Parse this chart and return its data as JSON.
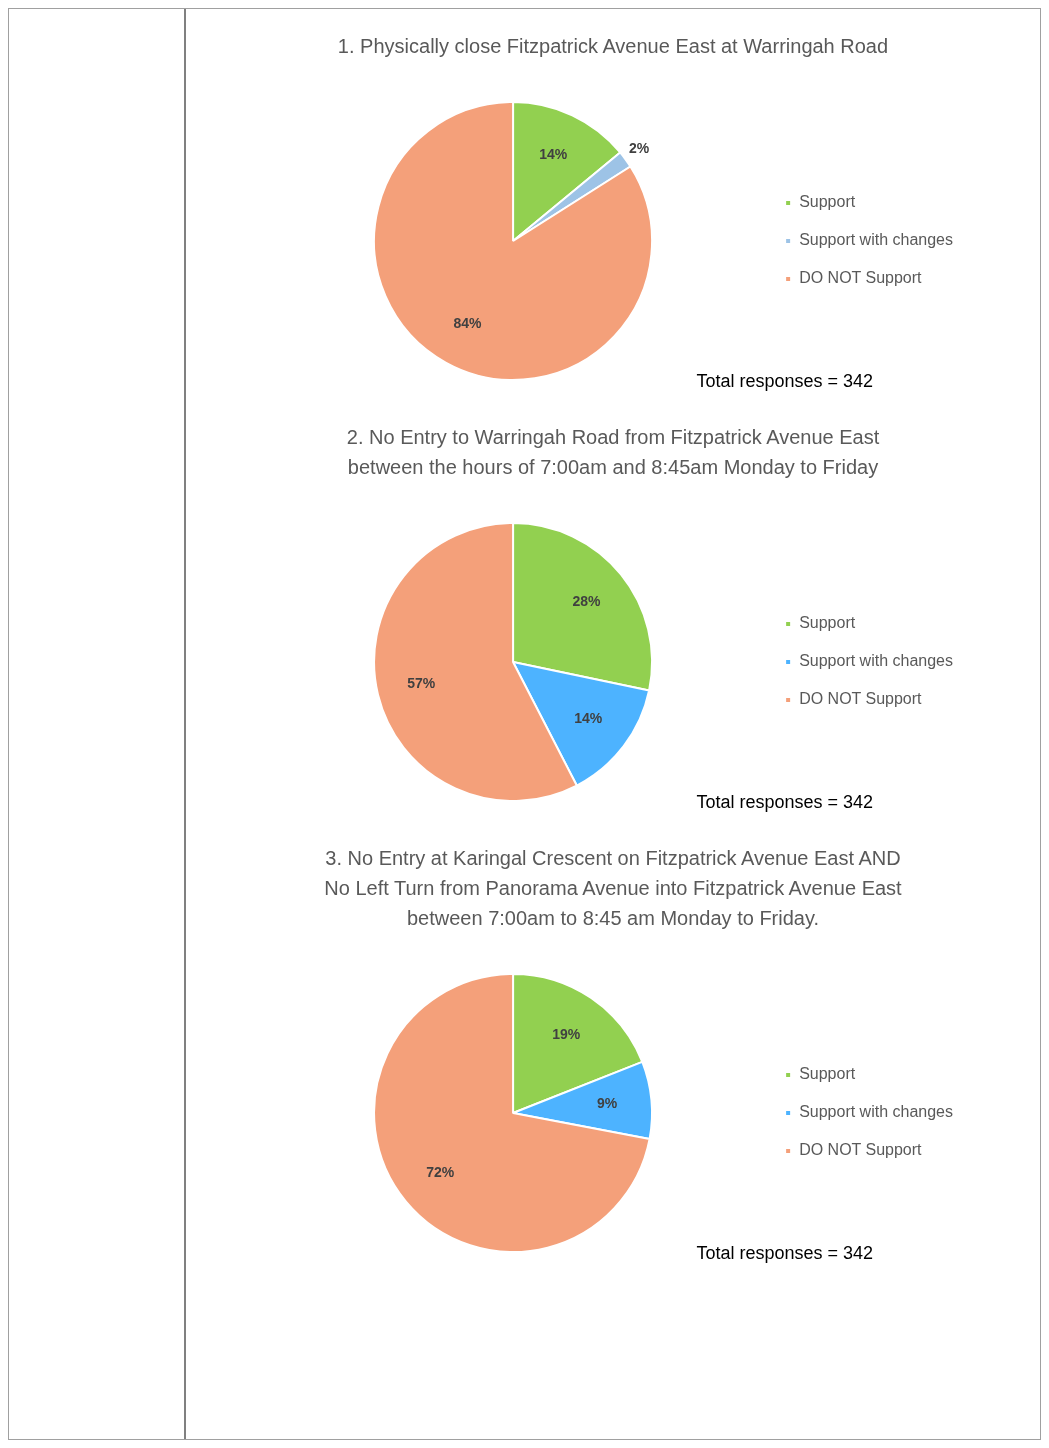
{
  "chart_data": [
    {
      "type": "pie",
      "title": "1. Physically close Fitzpatrick Avenue East at Warringah Road",
      "categories": [
        "Support",
        "Support with changes",
        "DO NOT Support"
      ],
      "values": [
        14,
        2,
        84
      ],
      "value_labels": [
        "14%",
        "2%",
        "84%"
      ],
      "colors": [
        "#92d050",
        "#9dc3e6",
        "#f4a07a"
      ],
      "legend": "right",
      "annotations": [
        "Total responses = 342"
      ]
    },
    {
      "type": "pie",
      "title": "2. No Entry to Warringah Road from Fitzpatrick Avenue East between the hours of 7:00am and 8:45am Monday to Friday",
      "categories": [
        "Support",
        "Support with changes",
        "DO NOT Support"
      ],
      "values": [
        28,
        14,
        57
      ],
      "value_labels": [
        "28%",
        "14%",
        "57%"
      ],
      "colors": [
        "#92d050",
        "#4db3ff",
        "#f4a07a"
      ],
      "legend": "right",
      "annotations": [
        "Total responses = 342"
      ]
    },
    {
      "type": "pie",
      "title": "3. No Entry at Karingal Crescent on Fitzpatrick Avenue East AND No Left Turn from Panorama Avenue into Fitzpatrick Avenue East between 7:00am to 8:45 am Monday to Friday.",
      "categories": [
        "Support",
        "Support with changes",
        "DO NOT Support"
      ],
      "values": [
        19,
        9,
        72
      ],
      "value_labels": [
        "19%",
        "9%",
        "72%"
      ],
      "colors": [
        "#92d050",
        "#4db3ff",
        "#f4a07a"
      ],
      "legend": "right",
      "annotations": [
        "Total responses = 342"
      ]
    }
  ]
}
